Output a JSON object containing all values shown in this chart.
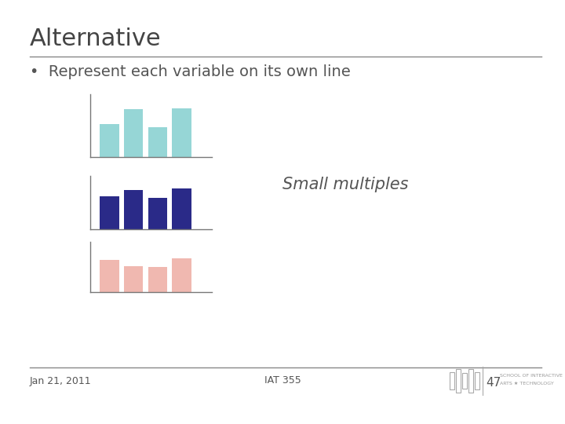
{
  "title": "Alternative",
  "bullet": "Represent each variable on its own line",
  "small_multiples_label": "Small multiples",
  "date": "Jan 21, 2011",
  "course": "IAT 355",
  "slide_number": "47",
  "background_color": "#ffffff",
  "text_color": "#555555",
  "title_color": "#444444",
  "chart1": {
    "values": [
      0.55,
      0.8,
      0.5,
      0.82
    ],
    "color": "#96d6d6"
  },
  "chart2": {
    "values": [
      0.65,
      0.78,
      0.62,
      0.8
    ],
    "color": "#2a2a88"
  },
  "chart3": {
    "values": [
      0.68,
      0.55,
      0.52,
      0.7
    ],
    "color": "#f0b8b0"
  }
}
